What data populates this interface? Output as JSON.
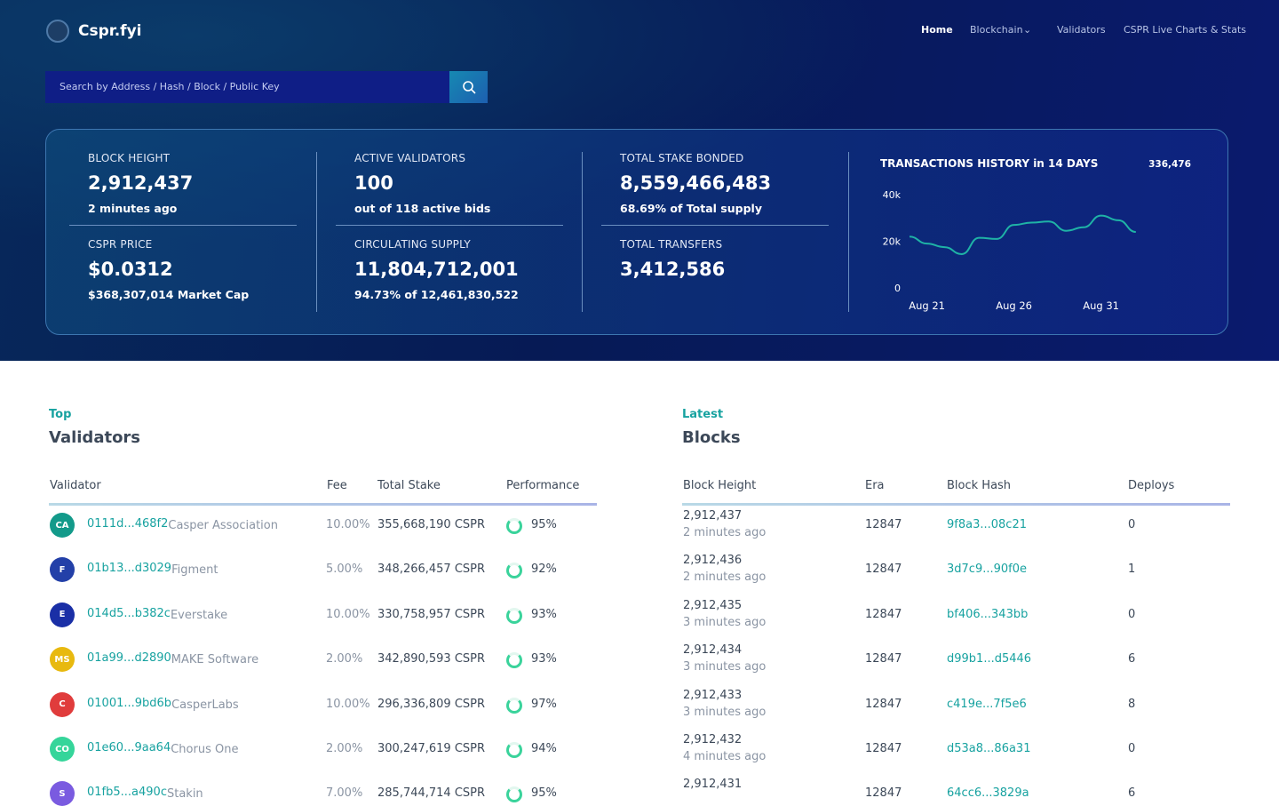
{
  "header": {
    "logo": "Cspr.fyi",
    "nav": [
      "Home",
      "Blockchain",
      "Validators",
      "CSPR Live Charts & Stats"
    ],
    "search_placeholder": "Search by Address / Hash / Block / Public Key"
  },
  "stats": [
    {
      "label": "BLOCK HEIGHT",
      "value": "2,912,437",
      "sub": "2 minutes ago"
    },
    {
      "label": "CSPR PRICE",
      "value": "$0.0312",
      "sub": "$368,307,014 Market Cap"
    },
    {
      "label": "ACTIVE VALIDATORS",
      "value": "100",
      "sub": "out of 118 active bids"
    },
    {
      "label": "CIRCULATING SUPPLY",
      "value": "11,804,712,001",
      "sub": "94.73% of 12,461,830,522"
    },
    {
      "label": "TOTAL STAKE BONDED",
      "value": "8,559,466,483",
      "sub": "68.69% of Total supply"
    },
    {
      "label": "TOTAL TRANSFERS",
      "value": "3,412,586"
    }
  ],
  "chart_data": {
    "type": "line",
    "title": "TRANSACTIONS HISTORY in 14 DAYS",
    "total": "336,476",
    "categories": [
      null,
      "Aug 21",
      null,
      null,
      null,
      null,
      "Aug 26",
      null,
      null,
      null,
      null,
      "Aug 31",
      null,
      null
    ],
    "series": [
      {
        "name": "Transactions",
        "color": "#1fb3a6",
        "values": [
          22000,
          19000,
          17500,
          14500,
          21500,
          21000,
          27000,
          28000,
          28500,
          24500,
          26000,
          31000,
          29000,
          24000
        ]
      }
    ],
    "ylim": [
      0,
      40000
    ],
    "yticks": [
      0,
      {
        "value": 20000,
        "label": "20k"
      },
      {
        "value": 40000,
        "label": "40k"
      }
    ]
  },
  "validators": {
    "kicker": "Top",
    "title": "Validators",
    "columns": [
      "Validator",
      "Fee",
      "Total Stake",
      "Performance"
    ],
    "rows": [
      {
        "initials": "CA",
        "color": "#139a8a",
        "address": "0111d...468f2",
        "name": "Casper Association",
        "fee": "10.00%",
        "stake": "355,668,190 CSPR",
        "performance": "95%"
      },
      {
        "initials": "F",
        "color": "#2340a8",
        "address": "01b13...d3029",
        "name": "Figment",
        "fee": "5.00%",
        "stake": "348,266,457 CSPR",
        "performance": "92%"
      },
      {
        "initials": "E",
        "color": "#1a2fa6",
        "address": "014d5...b382c",
        "name": "Everstake",
        "fee": "10.00%",
        "stake": "330,758,957 CSPR",
        "performance": "93%"
      },
      {
        "initials": "MS",
        "color": "#e8b90f",
        "address": "01a99...d2890",
        "name": "MAKE Software",
        "fee": "2.00%",
        "stake": "342,890,593 CSPR",
        "performance": "93%"
      },
      {
        "initials": "C",
        "color": "#e03c3c",
        "address": "01001...9bd6b",
        "name": "CasperLabs",
        "fee": "10.00%",
        "stake": "296,336,809 CSPR",
        "performance": "97%"
      },
      {
        "initials": "CO",
        "color": "#35d59a",
        "address": "01e60...9aa64",
        "name": "Chorus One",
        "fee": "2.00%",
        "stake": "300,247,619 CSPR",
        "performance": "94%"
      },
      {
        "initials": "S",
        "color": "#7a5be0",
        "address": "01fb5...a490c",
        "name": "Stakin",
        "fee": "7.00%",
        "stake": "285,744,714 CSPR",
        "performance": "95%"
      }
    ]
  },
  "blocks": {
    "kicker": "Latest",
    "title": "Blocks",
    "columns": [
      "Block Height",
      "Era",
      "Block Hash",
      "Deploys"
    ],
    "rows": [
      {
        "height": "2,912,437",
        "time": "2 minutes ago",
        "era": "12847",
        "hash": "9f8a3...08c21",
        "deploys": "0"
      },
      {
        "height": "2,912,436",
        "time": "2 minutes ago",
        "era": "12847",
        "hash": "3d7c9...90f0e",
        "deploys": "1"
      },
      {
        "height": "2,912,435",
        "time": "3 minutes ago",
        "era": "12847",
        "hash": "bf406...343bb",
        "deploys": "0"
      },
      {
        "height": "2,912,434",
        "time": "3 minutes ago",
        "era": "12847",
        "hash": "d99b1...d5446",
        "deploys": "6"
      },
      {
        "height": "2,912,433",
        "time": "3 minutes ago",
        "era": "12847",
        "hash": "c419e...7f5e6",
        "deploys": "8"
      },
      {
        "height": "2,912,432",
        "time": "4 minutes ago",
        "era": "12847",
        "hash": "d53a8...86a31",
        "deploys": "0"
      },
      {
        "height": "2,912,431",
        "era": "12847",
        "hash": "64cc6...3829a",
        "deploys": "6"
      }
    ]
  }
}
